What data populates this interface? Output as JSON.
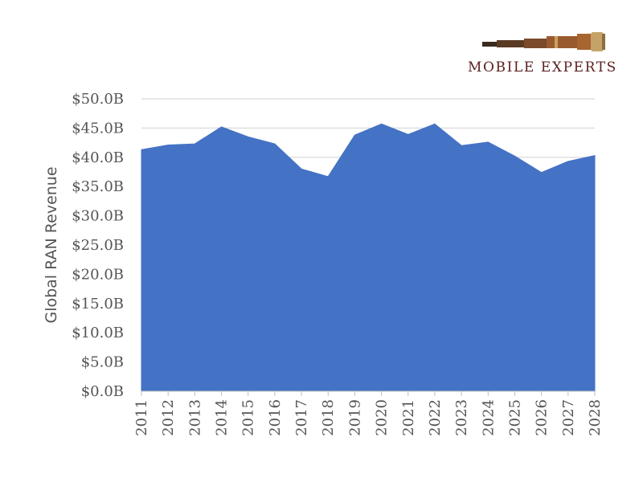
{
  "brand": {
    "name": "MOBILE EXPERTS",
    "logo_icon": "telescope-icon",
    "text_color": "#5a1e1e"
  },
  "chart_data": {
    "type": "area",
    "title": "",
    "xlabel": "",
    "ylabel": "Global RAN Revenue",
    "x": [
      "2011",
      "2012",
      "2013",
      "2014",
      "2015",
      "2016",
      "2017",
      "2018",
      "2019",
      "2020",
      "2021",
      "2022",
      "2023",
      "2024",
      "2025",
      "2026",
      "2027",
      "2028"
    ],
    "series": [
      {
        "values": [
          41.3,
          42.1,
          42.3,
          45.2,
          43.5,
          42.3,
          38.0,
          36.7,
          43.8,
          45.7,
          43.9,
          45.7,
          42.0,
          42.6,
          40.2,
          37.4,
          39.3,
          40.3
        ],
        "color": "#4472c4"
      }
    ],
    "ylim": [
      0,
      50
    ],
    "yticks": [
      0,
      5,
      10,
      15,
      20,
      25,
      30,
      35,
      40,
      45,
      50
    ],
    "ytick_labels": [
      "$0.0B",
      "$5.0B",
      "$10.0B",
      "$15.0B",
      "$20.0B",
      "$25.0B",
      "$30.0B",
      "$35.0B",
      "$40.0B",
      "$45.0B",
      "$50.0B"
    ],
    "grid": true,
    "legend": "none"
  }
}
